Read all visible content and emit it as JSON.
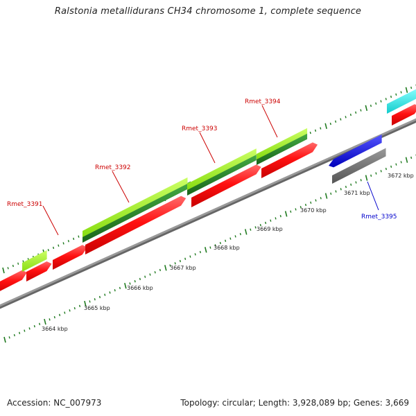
{
  "title": "Ralstonia metallidurans CH34 chromosome 1, complete sequence",
  "footer": {
    "accession": "Accession: NC_007973",
    "summary": "Topology: circular; Length: 3,928,089 bp; Genes: 3,669"
  },
  "colors": {
    "cds_forward": "#ff1a1a",
    "cds_reverse": "#1a1aee",
    "gene_green": "#99ee22",
    "gene_dark_green": "#2e8b2e",
    "cyan_feature": "#22e5ee",
    "grey_feature": "#666666",
    "backbone": "#999999",
    "tick": "#1f7a1f",
    "label_forward": "#cc0000",
    "label_reverse": "#0000cc"
  },
  "scale_labels": [
    "3664 kbp",
    "3665 kbp",
    "3666 kbp",
    "3667 kbp",
    "3668 kbp",
    "3669 kbp",
    "3670 kbp",
    "3671 kbp",
    "3672 kbp"
  ],
  "genes": [
    {
      "label": "Rmet_3391",
      "strand": "forward"
    },
    {
      "label": "Rmet_3392",
      "strand": "forward"
    },
    {
      "label": "Rmet_3393",
      "strand": "forward"
    },
    {
      "label": "Rmet_3394",
      "strand": "forward"
    },
    {
      "label": "Rmet_3395",
      "strand": "reverse"
    }
  ]
}
